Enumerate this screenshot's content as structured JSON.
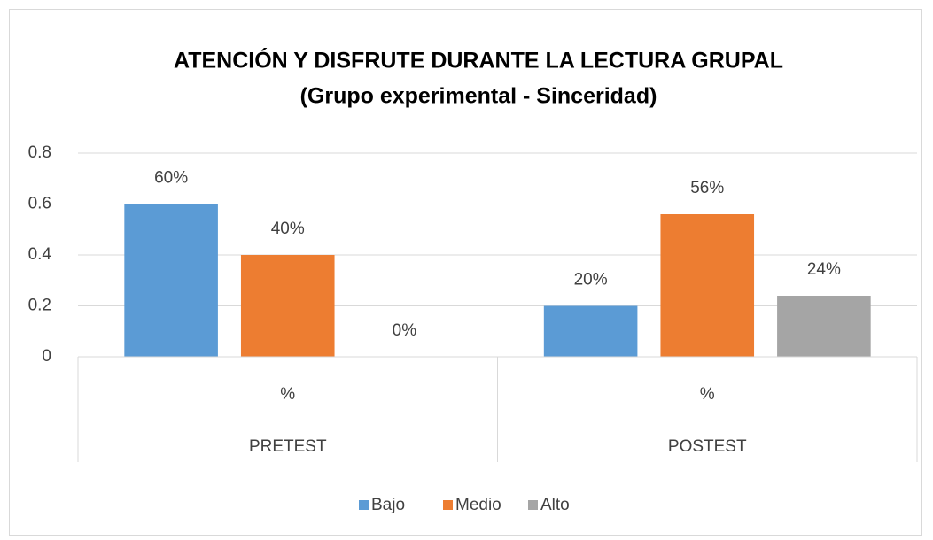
{
  "chart_data": {
    "type": "bar",
    "title": "ATENCIÓN Y DISFRUTE DURANTE LA LECTURA GRUPAL",
    "subtitle": "(Grupo experimental - Sinceridad)",
    "categories": [
      "%",
      "%"
    ],
    "groups": [
      "PRETEST",
      "POSTEST"
    ],
    "series": [
      {
        "name": "Bajo",
        "color": "#5b9bd5",
        "values": [
          0.6,
          0.2
        ],
        "value_labels": [
          "60%",
          "20%"
        ]
      },
      {
        "name": "Medio",
        "color": "#ed7d31",
        "values": [
          0.4,
          0.56
        ],
        "value_labels": [
          "40%",
          "56%"
        ]
      },
      {
        "name": "Alto",
        "color": "#a5a5a5",
        "values": [
          0,
          0.24
        ],
        "value_labels": [
          "0%",
          "24%"
        ]
      }
    ],
    "ylim": [
      0,
      0.8
    ],
    "yticks": [
      0,
      0.2,
      0.4,
      0.6,
      0.8
    ],
    "grid": true,
    "legend": "bottom"
  }
}
